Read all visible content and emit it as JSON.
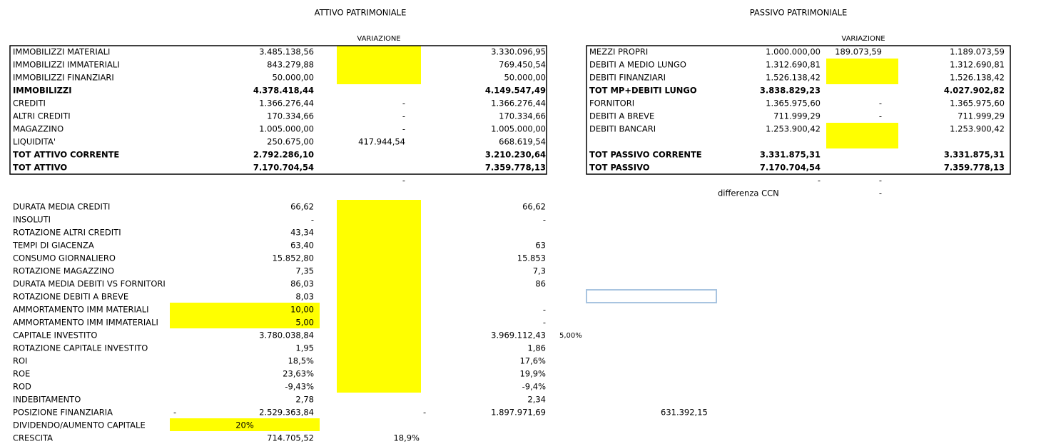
{
  "sections": {
    "attivo": {
      "title": "ATTIVO PATRIMONIALE",
      "variation_header": "VARIAZIONE",
      "rows": [
        {
          "label": "IMMOBILIZZI MATERIALI",
          "value": "3.485.138,56",
          "new": "3.330.096,95"
        },
        {
          "label": "IMMOBILIZZI IMMATERIALI",
          "value": "843.279,88",
          "new": "769.450,54"
        },
        {
          "label": "IMMOBILIZZI FINANZIARI",
          "value": "50.000,00",
          "new": "50.000,00"
        },
        {
          "label": "IMMOBILIZZI",
          "value": "4.378.418,44",
          "new": "4.149.547,49",
          "bold": true
        },
        {
          "label": "CREDITI",
          "value": "1.366.276,44",
          "variation": "-",
          "new": "1.366.276,44"
        },
        {
          "label": "ALTRI CREDITI",
          "value": "170.334,66",
          "variation": "-",
          "new": "170.334,66"
        },
        {
          "label": "MAGAZZINO",
          "value": "1.005.000,00",
          "variation": "-",
          "new": "1.005.000,00"
        },
        {
          "label": "LIQUIDITA'",
          "value": "250.675,00",
          "variation": "417.944,54",
          "new": "668.619,54"
        },
        {
          "label": "TOT ATTIVO CORRENTE",
          "value": "2.792.286,10",
          "new": "3.210.230,64",
          "bold": true
        },
        {
          "label": "TOT ATTIVO",
          "value": "7.170.704,54",
          "new": "7.359.778,13",
          "bold": true
        },
        {
          "variation": "-"
        }
      ]
    },
    "passivo": {
      "title": "PASSIVO PATRIMONIALE",
      "variation_header": "VARIAZIONE",
      "rows": [
        {
          "label": "MEZZI PROPRI",
          "value": "1.000.000,00",
          "variation": "189.073,59",
          "new": "1.189.073,59"
        },
        {
          "label": "DEBITI A MEDIO LUNGO",
          "value": "1.312.690,81",
          "new": "1.312.690,81"
        },
        {
          "label": "DEBITI FINANZIARI",
          "value": "1.526.138,42",
          "new": "1.526.138,42"
        },
        {
          "label": "TOT MP+DEBITI LUNGO",
          "value": "3.838.829,23",
          "new": "4.027.902,82",
          "bold": true
        },
        {
          "label": "FORNITORI",
          "value": "1.365.975,60",
          "variation": "-",
          "new": "1.365.975,60"
        },
        {
          "label": "DEBITI A BREVE",
          "value": "711.999,29",
          "variation": "-",
          "new": "711.999,29"
        },
        {
          "label": "DEBITI BANCARI",
          "value": "1.253.900,42",
          "new": "1.253.900,42"
        },
        {},
        {
          "label": "TOT PASSIVO CORRENTE",
          "value": "3.331.875,31",
          "new": "3.331.875,31",
          "bold": true
        },
        {
          "label": "TOT PASSIVO",
          "value": "7.170.704,54",
          "new": "7.359.778,13",
          "bold": true
        },
        {
          "value": "-",
          "variation": "-"
        },
        {
          "note": "differenza CCN",
          "variation": "-"
        }
      ]
    },
    "indicators": {
      "rows": [
        {
          "label": "DURATA MEDIA CREDITI",
          "value": "66,62",
          "new": "66,62"
        },
        {
          "label": "INSOLUTI",
          "value": "-",
          "new": "-"
        },
        {
          "label": "ROTAZIONE ALTRI CREDITI",
          "value": "43,34"
        },
        {
          "label": "TEMPI DI GIACENZA",
          "value": "63,40",
          "new": "63"
        },
        {
          "label": "CONSUMO GIORNALIERO",
          "value": "15.852,80",
          "new": "15.853"
        },
        {
          "label": "ROTAZIONE MAGAZZINO",
          "value": "7,35",
          "new": "7,3"
        },
        {
          "label": "DURATA MEDIA DEBITI VS FORNITORI",
          "value": "86,03",
          "new": "86"
        },
        {
          "label": "ROTAZIONE DEBITI A BREVE",
          "value": "8,03"
        },
        {
          "label": "AMMORTAMENTO IMM MATERIALI",
          "value": "10,00",
          "new": "-"
        },
        {
          "label": "AMMORTAMENTO IMM IMMATERIALI",
          "value": "5,00",
          "new": "-"
        },
        {
          "label": "CAPITALE INVESTITO",
          "value": "3.780.038,84",
          "new": "3.969.112,43",
          "note": "5,00%"
        },
        {
          "label": "ROTAZIONE CAPITALE INVESTITO",
          "value": "1,95",
          "new": "1,86"
        },
        {
          "label": "ROI",
          "value": "18,5%",
          "new": "17,6%"
        },
        {
          "label": "ROE",
          "value": "23,63%",
          "new": "19,9%"
        },
        {
          "label": "ROD",
          "value": "-9,43%",
          "new": "-9,4%"
        },
        {
          "label": "INDEBITAMENTO",
          "value": "2,78",
          "new": "2,34"
        },
        {
          "label": "POSIZIONE FINANZIARIA",
          "pre": "-",
          "value": "2.529.363,84",
          "pre_new": "-",
          "new": "1.897.971,69",
          "far": "631.392,15"
        },
        {
          "label": "DIVIDENDO/AUMENTO CAPITALE",
          "input": "20%"
        },
        {
          "label": "CRESCITA",
          "value": "714.705,52",
          "variation": "18,9%"
        }
      ]
    }
  }
}
